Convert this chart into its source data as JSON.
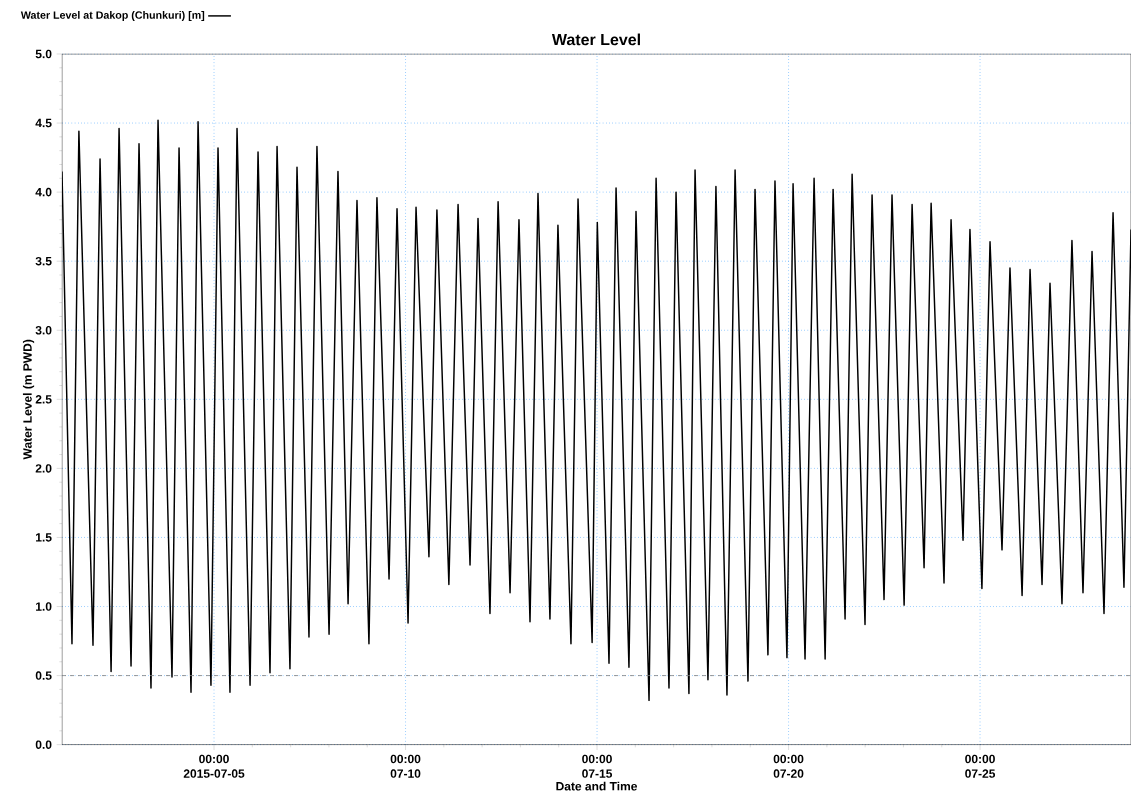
{
  "chart_data": {
    "type": "line",
    "title": "Water Level",
    "xlabel": "Date and Time",
    "ylabel": "Water Level (m PWD)",
    "x": [
      "2015-07-01T00:45",
      "2015-07-01T07:00",
      "2015-07-01T11:20",
      "2015-07-01T20:10",
      "2015-07-02T00:35",
      "2015-07-02T07:30",
      "2015-07-02T12:30",
      "2015-07-02T20:00",
      "2015-07-03T01:00",
      "2015-07-03T08:30",
      "2015-07-03T12:55",
      "2015-07-03T21:40",
      "2015-07-04T02:05",
      "2015-07-04T09:35",
      "2015-07-04T14:00",
      "2015-07-04T22:05",
      "2015-07-05T02:30",
      "2015-07-05T10:00",
      "2015-07-05T14:25",
      "2015-07-05T22:35",
      "2015-07-06T03:35",
      "2015-07-06T11:05",
      "2015-07-06T15:30",
      "2015-07-06T23:35",
      "2015-07-07T04:00",
      "2015-07-07T11:30",
      "2015-07-07T16:30",
      "2015-07-08T00:05",
      "2015-07-08T05:40",
      "2015-07-08T12:00",
      "2015-07-08T17:35",
      "2015-07-09T01:05",
      "2015-07-09T06:05",
      "2015-07-09T13:40",
      "2015-07-09T18:40",
      "2015-07-10T01:35",
      "2015-07-10T06:35",
      "2015-07-10T14:40",
      "2015-07-10T19:40",
      "2015-07-11T03:10",
      "2015-07-11T08:55",
      "2015-07-11T16:25",
      "2015-07-11T21:25",
      "2015-07-12T04:55",
      "2015-07-12T10:00",
      "2015-07-12T17:30",
      "2015-07-12T23:05",
      "2015-07-13T06:00",
      "2015-07-13T11:00",
      "2015-07-13T18:30",
      "2015-07-13T23:30",
      "2015-07-14T07:40",
      "2015-07-14T12:05",
      "2015-07-14T20:55",
      "2015-07-15T00:10",
      "2015-07-15T07:30",
      "2015-07-15T11:55",
      "2015-07-15T20:00",
      "2015-07-16T00:25",
      "2015-07-16T08:35",
      "2015-07-16T13:00",
      "2015-07-16T21:05",
      "2015-07-17T01:30",
      "2015-07-17T09:35",
      "2015-07-17T13:25",
      "2015-07-17T21:30",
      "2015-07-18T02:30",
      "2015-07-18T09:25",
      "2015-07-18T14:30",
      "2015-07-18T22:35",
      "2015-07-19T03:00",
      "2015-07-19T11:05",
      "2015-07-19T15:30",
      "2015-07-19T23:00",
      "2015-07-20T02:50",
      "2015-07-20T10:20",
      "2015-07-20T16:00",
      "2015-07-20T22:55",
      "2015-07-21T03:55",
      "2015-07-21T11:25",
      "2015-07-21T15:50",
      "2015-07-21T23:55",
      "2015-07-22T04:20",
      "2015-07-22T11:50",
      "2015-07-22T16:50",
      "2015-07-23T00:25",
      "2015-07-23T05:25",
      "2015-07-23T12:55",
      "2015-07-23T17:20",
      "2015-07-24T01:25",
      "2015-07-24T05:50",
      "2015-07-24T13:20",
      "2015-07-24T17:40",
      "2015-07-25T01:10",
      "2015-07-25T06:15",
      "2015-07-25T13:45",
      "2015-07-25T18:45",
      "2015-07-26T02:20",
      "2015-07-26T07:20",
      "2015-07-26T14:50",
      "2015-07-26T19:50",
      "2015-07-27T03:20",
      "2015-07-27T09:35",
      "2015-07-27T16:30",
      "2015-07-27T22:10",
      "2015-07-28T05:40",
      "2015-07-28T11:20",
      "2015-07-28T18:10",
      "2015-07-28T22:35"
    ],
    "series": [
      {
        "name": "Water Level  at Dakop (Chunkuri) [m]",
        "color": "#000000",
        "values": [
          4.15,
          0.73,
          4.44,
          0.72,
          4.24,
          0.53,
          4.46,
          0.57,
          4.35,
          0.41,
          4.52,
          0.49,
          4.32,
          0.38,
          4.51,
          0.43,
          4.32,
          0.38,
          4.46,
          0.43,
          4.29,
          0.52,
          4.33,
          0.55,
          4.18,
          0.78,
          4.33,
          0.8,
          4.15,
          1.02,
          3.94,
          0.73,
          3.96,
          1.2,
          3.88,
          0.88,
          3.89,
          1.36,
          3.87,
          1.16,
          3.91,
          1.3,
          3.81,
          0.95,
          3.93,
          1.1,
          3.8,
          0.89,
          3.99,
          0.91,
          3.76,
          0.73,
          3.95,
          0.74,
          3.78,
          0.59,
          4.03,
          0.56,
          3.86,
          0.32,
          4.1,
          0.41,
          4.0,
          0.37,
          4.16,
          0.47,
          4.04,
          0.36,
          4.16,
          0.46,
          4.02,
          0.65,
          4.08,
          0.63,
          4.06,
          0.62,
          4.1,
          0.62,
          4.02,
          0.91,
          4.13,
          0.87,
          3.98,
          1.05,
          3.98,
          1.01,
          3.91,
          1.28,
          3.92,
          1.17,
          3.8,
          1.48,
          3.73,
          1.13,
          3.64,
          1.41,
          3.45,
          1.08,
          3.44,
          1.16,
          3.34,
          1.02,
          3.65,
          1.1,
          3.57,
          0.95,
          3.85,
          1.14,
          3.73
        ]
      }
    ],
    "xlim": [
      "2015-07-01T00:45",
      "2015-07-28T22:35"
    ],
    "xticks": [
      {
        "value": "2015-07-05T00:00",
        "label": "00:00 2015-07-05"
      },
      {
        "value": "2015-07-10T00:00",
        "label": "00:00 07-10"
      },
      {
        "value": "2015-07-15T00:00",
        "label": "00:00 07-15"
      },
      {
        "value": "2015-07-20T00:00",
        "label": "00:00 07-20"
      },
      {
        "value": "2015-07-25T00:00",
        "label": "00:00 07-25"
      }
    ],
    "ylim": [
      0,
      5
    ],
    "yticks": [
      {
        "value": 0,
        "label": "0.0"
      },
      {
        "value": 0.5,
        "label": "0.5"
      },
      {
        "value": 1,
        "label": "1.0"
      },
      {
        "value": 1.5,
        "label": "1.5"
      },
      {
        "value": 2,
        "label": "2.0"
      },
      {
        "value": 2.5,
        "label": "2.5"
      },
      {
        "value": 3,
        "label": "3.0"
      },
      {
        "value": 3.5,
        "label": "3.5"
      },
      {
        "value": 4,
        "label": "4.0"
      },
      {
        "value": 4.5,
        "label": "4.5"
      },
      {
        "value": 5,
        "label": "5.0"
      }
    ],
    "ref_lines": [
      {
        "axis": "y",
        "value": 0.5,
        "color": "#808080",
        "line_style": "dashed"
      }
    ],
    "grid": true,
    "legend": "top left",
    "marker": "none",
    "line_style": "solid"
  }
}
